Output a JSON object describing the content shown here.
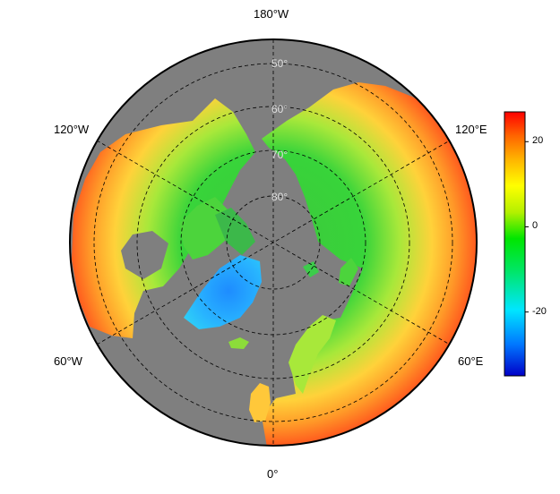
{
  "map": {
    "projection": "north polar stereographic",
    "ocean_color": "#7f7f7f",
    "longitude_labels": {
      "top": "180°W",
      "upper_left": "120°W",
      "upper_right": "120°E",
      "lower_left": "60°W",
      "lower_right": "60°E",
      "bottom": "0°"
    },
    "latitude_labels": [
      "50°",
      "60°",
      "70°",
      "80°"
    ],
    "colorbar": {
      "min": -35,
      "max": 27,
      "ticks": [
        "20",
        "0",
        "-20"
      ],
      "tick_values": [
        20,
        0,
        -20
      ],
      "colormap": [
        "#0000c8",
        "#0078ff",
        "#00e6ff",
        "#00e664",
        "#00e600",
        "#b4f000",
        "#ffff00",
        "#ffb400",
        "#ff6400",
        "#ff0000"
      ]
    }
  }
}
